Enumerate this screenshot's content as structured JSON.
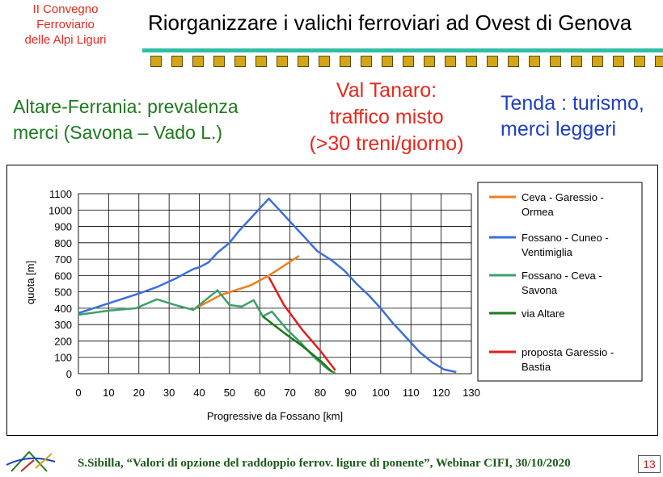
{
  "conference": [
    "II Convegno",
    "Ferroviario",
    "delle Alpi Liguri"
  ],
  "title": "Riorganizzare i valichi ferroviari ad Ovest di Genova",
  "colors": {
    "accent_bar": "#2ebfa3",
    "squares": "#d4a514"
  },
  "headlines": {
    "left": {
      "lines": [
        "Altare-Ferrania: prevalenza",
        "merci (Savona – Vado L.)"
      ],
      "color": "#1e7a1e"
    },
    "middle": {
      "lines": [
        "Val Tanaro:",
        "traffico misto",
        "(>30 treni/giorno)"
      ],
      "color": "#e8281e"
    },
    "right": {
      "lines": [
        "Tenda : turismo,",
        "merci leggeri"
      ],
      "color": "#1f3fbf"
    }
  },
  "chart_data": {
    "type": "line",
    "title": "",
    "xlabel": "Progressive da Fossano [km]",
    "ylabel": "quota [m]",
    "xlim": [
      0,
      130
    ],
    "ylim": [
      0,
      1100
    ],
    "xticks": [
      0,
      10,
      20,
      30,
      40,
      50,
      60,
      70,
      80,
      90,
      100,
      110,
      120,
      130
    ],
    "yticks": [
      0,
      100,
      200,
      300,
      400,
      500,
      600,
      700,
      800,
      900,
      1000,
      1100
    ],
    "grid": true,
    "legend_position": "right",
    "series": [
      {
        "name": "Ceva - Garessio - Ormea",
        "color": "#f07d1e",
        "x": [
          38,
          47,
          57,
          63,
          73
        ],
        "y": [
          392,
          480,
          540,
          600,
          720
        ]
      },
      {
        "name": "Fossano - Cuneo - Ventimiglia",
        "color": "#3c6edc",
        "x": [
          0,
          10,
          20,
          26,
          32,
          38,
          40,
          43,
          46,
          50,
          53,
          57,
          60,
          63,
          66,
          70,
          75,
          79,
          84,
          88,
          92,
          96,
          100,
          104,
          108,
          113,
          117,
          121,
          125
        ],
        "y": [
          370,
          430,
          490,
          530,
          580,
          640,
          650,
          680,
          740,
          800,
          870,
          950,
          1010,
          1070,
          1010,
          930,
          830,
          750,
          690,
          630,
          550,
          480,
          400,
          310,
          230,
          130,
          70,
          25,
          10
        ]
      },
      {
        "name": "Fossano - Ceva - Savona",
        "color": "#3ea06a",
        "x": [
          0,
          10,
          19,
          26,
          32,
          38,
          42,
          46,
          50,
          54,
          58,
          61,
          64,
          69,
          73,
          78,
          83,
          85
        ],
        "y": [
          360,
          385,
          400,
          455,
          420,
          390,
          450,
          510,
          420,
          410,
          450,
          350,
          380,
          270,
          200,
          100,
          20,
          5
        ]
      },
      {
        "name": "via Altare",
        "color": "#1a7a1a",
        "x": [
          61,
          68,
          74,
          80,
          84
        ],
        "y": [
          350,
          250,
          170,
          80,
          10
        ]
      },
      {
        "name": "proposta Garessio - Bastia",
        "color": "#e01e1e",
        "x": [
          63,
          68,
          74,
          80,
          85
        ],
        "y": [
          590,
          420,
          270,
          140,
          20
        ]
      }
    ]
  },
  "legend": [
    {
      "lines": [
        "Ceva - Garessio -",
        "Ormea"
      ],
      "color": "#f07d1e"
    },
    {
      "lines": [
        "Fossano - Cuneo -",
        "Ventimiglia"
      ],
      "color": "#3c6edc"
    },
    {
      "lines": [
        "Fossano - Ceva -",
        "Savona"
      ],
      "color": "#3ea06a"
    },
    {
      "lines": [
        "via Altare"
      ],
      "color": "#1a7a1a"
    },
    {
      "lines": [
        "proposta Garessio -",
        "Bastia"
      ],
      "color": "#e01e1e"
    }
  ],
  "footer": "S.Sibilla, “Valori di opzione del raddoppio ferrov. ligure di ponente”, Webinar CIFI, 30/10/2020",
  "page_number": "13"
}
